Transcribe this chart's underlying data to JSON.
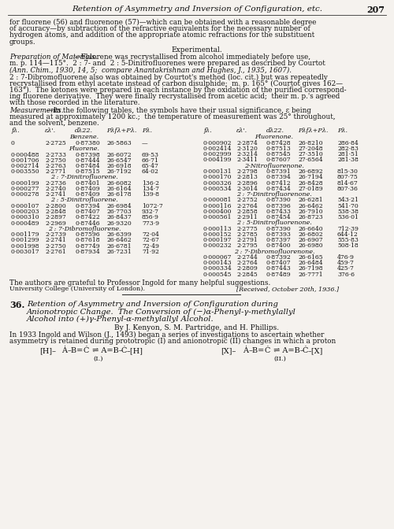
{
  "background_color": "#f5f2ee",
  "header_italic": "Retention of Asymmetry and Inversion of Configuration, etc.",
  "header_page": "207",
  "lines_p1": [
    "for fluorene (56) and fluorenone (57)—which can be obtained with a reasonable degree",
    "of accuracy—by subtraction of the refractive equivalents for the necessary number of",
    "hydrogen atoms, and addition of the appropriate atomic refractions for the substituent",
    "groups."
  ],
  "prep_italic": "Preparation of Materials.",
  "prep_rest": "—Fluorene was recrystallised from alcohol immediately before use,",
  "prep_line2": "m. p. 114—115°.  2 : 7- and  2 : 5-Dinitrofluorenes were prepared as described by Courtot",
  "prep_line3_italic": "(Ann. Chim., 1930, 14, 5;  compare Anantakrishnan and Hughes, J., 1935, 1607).",
  "lines_p2": [
    "2 : 7-Dibromofluorene also was obtained by Courtot's method (loc. cit.) but was repeatedly",
    "recrystallised from ethyl acetate instead of carbon disulphide;  m. p. 165° (Courtot gives 162—",
    "163°).  The ketones were prepared in each instance by the oxidation of the purified correspond-",
    "ing fluorene derivative.  They were finally recrystallised from acetic acid;  their m. p.'s agreed",
    "with those recorded in the literature."
  ],
  "meas_italic": "Measurements.",
  "meas_rest": "—In the following tables, the symbols have their usual significance, ε being",
  "meas_line2": "measured at approximately 1200 kc.;  the temperature of measurement was 25° throughout,",
  "meas_line3": "and the solvent, benzene.",
  "col_headers_italic": [
    "fλ.",
    "ελ'.",
    "dλ22.",
    "Pλfλ+Pλ.",
    "Pλ."
  ],
  "lx": [
    14,
    57,
    95,
    135,
    180
  ],
  "rx": [
    258,
    300,
    338,
    378,
    428
  ],
  "section_benzene": "Benzene.",
  "benzene_data": [
    [
      "0",
      "2·2725",
      "0·87380",
      "26·5863",
      "—"
    ]
  ],
  "section_fluorene": "Fluorene.",
  "fluorene_data": [
    [
      "0·000488",
      "2·2733",
      "0·87398",
      "26·6072",
      "69·53"
    ],
    [
      "0·001706",
      "2·2750",
      "0·87444",
      "26·6547",
      "66·71"
    ],
    [
      "0·002714",
      "2·2763",
      "0·87484",
      "26·6918",
      "65·47"
    ],
    [
      "0·003550",
      "2·2771",
      "0·87515",
      "26·7192",
      "64·02"
    ]
  ],
  "section_27dinitro": "2 : 7-Dinitrofluorene.",
  "data_27dinitro": [
    [
      "0·000199",
      "2·2736",
      "0·87401",
      "26·6082",
      "136·2"
    ],
    [
      "0·000277",
      "2·2740",
      "0·87409",
      "26·6164",
      "134·7"
    ],
    [
      "0·000278",
      "2·2741",
      "0·87409",
      "26·6178",
      "139·8"
    ]
  ],
  "section_25dinitro": "2 : 5-Dinitrofluorene.",
  "data_25dinitro": [
    [
      "0·000107",
      "2·2800",
      "0·87394",
      "26·6984",
      "1072·7"
    ],
    [
      "0·000203",
      "2·2848",
      "0·87407",
      "26·7703",
      "932·7"
    ],
    [
      "0·000310",
      "2·2897",
      "0·87422",
      "26·8437",
      "856·9"
    ],
    [
      "0·000489",
      "2·2969",
      "0·87446",
      "26·9320",
      "773·9"
    ]
  ],
  "section_27dibromo": "2 : 7-Dibromofluorene.",
  "data_27dibromo": [
    [
      "0·001179",
      "2·2739",
      "0·87596",
      "26·6399",
      "72·04"
    ],
    [
      "0·001299",
      "2·2741",
      "0·87618",
      "26·6462",
      "72·67"
    ],
    [
      "0·001998",
      "2·2750",
      "0·87749",
      "26·6781",
      "72·49"
    ],
    [
      "0·003017",
      "2·2761",
      "0·87934",
      "26·7231",
      "71·92"
    ]
  ],
  "section_fluorenone": "Fluorenone.",
  "fluorenone_data": [
    [
      "0·000902",
      "2·2874",
      "0·87428",
      "26·8210",
      "286·84"
    ],
    [
      "0·002414",
      "2·3120",
      "0·87513",
      "27·2048",
      "282·83"
    ],
    [
      "0·002999",
      "2·3214",
      "0·87545",
      "27·3510",
      "281·51"
    ],
    [
      "0·004199",
      "2·3411",
      "0·87607",
      "27·6564",
      "281·38"
    ]
  ],
  "section_r_2nitro": "2-Nitrofluorenone.",
  "data_r_2nitro": [
    [
      "0·000131",
      "2·2798",
      "0·87391",
      "26·6892",
      "815·30"
    ],
    [
      "0·000170",
      "2·2813",
      "0·87394",
      "26·7194",
      "807·75"
    ],
    [
      "0·000326",
      "2·2896",
      "0·87412",
      "26·8428",
      "814·67"
    ],
    [
      "0·000534",
      "2·3014",
      "0·87434",
      "27·0189",
      "807·36"
    ]
  ],
  "section_r_27dinitro": "2 : 7-Dinitrofluorenone.",
  "data_r_27dinitro": [
    [
      "0·000081",
      "2·2752",
      "0·87390",
      "26·6281",
      "543·21"
    ],
    [
      "0·000116",
      "2·2764",
      "0·87396",
      "26·6462",
      "541·70"
    ],
    [
      "0·000400",
      "2·2858",
      "0·87433",
      "26·7910",
      "538·38"
    ],
    [
      "0·000561",
      "2·2911",
      "0·87454",
      "26·8723",
      "536·01"
    ]
  ],
  "section_r_25dinitro": "2 : 5-Dinitrofluorenone.",
  "data_r_25dinitro": [
    [
      "0·000113",
      "2·2775",
      "0·87390",
      "26·6640",
      "712·39"
    ],
    [
      "0·000152",
      "2·2785",
      "0·87393",
      "26·6802",
      "644·12"
    ],
    [
      "0·000197",
      "2·2791",
      "0·87397",
      "26·6907",
      "555·83"
    ],
    [
      "0·000232",
      "2·2795",
      "0·87400",
      "26·6980",
      "508·18"
    ]
  ],
  "section_r_27dibromo": "2 : 7-Dibromofluorenone.",
  "data_r_27dibromo": [
    [
      "0·000067",
      "2·2744",
      "0·87392",
      "26·6165",
      "476·9"
    ],
    [
      "0·000143",
      "2·2764",
      "0·87407",
      "26·6484",
      "459·7"
    ],
    [
      "0·000334",
      "2·2809",
      "0·87443",
      "26·7198",
      "425·7"
    ],
    [
      "0·000545",
      "2·2845",
      "0·87489",
      "26·7771",
      "376·6"
    ]
  ],
  "acknowledgement": "The authors are grateful to Professor Ingold for many helpful suggestions.",
  "university": "University College (University of London).",
  "received": "[Received, October 20th, 1936.]",
  "article_num": "36.",
  "article_title_line1": "Retention of Asymmetry and Inversion of Configuration during",
  "article_title_line2": "Anionotropic Change.  The Conversion of (−)α-Phenyl-γ-methylallyl",
  "article_title_line3": "Alcohol into (+)γ-Phenyl-α-methylallyl Alcohol.",
  "authors_line": "By J. Kenyon, S. M. Partridge, and H. Phillips.",
  "intro_line1": "In 1933 Ingold and Wilson (J., 1493) began a series of investigations to ascertain whether",
  "intro_line2": "asymmetry is retained during prototropic (I) and anionotropic (II) changes in which a proton"
}
